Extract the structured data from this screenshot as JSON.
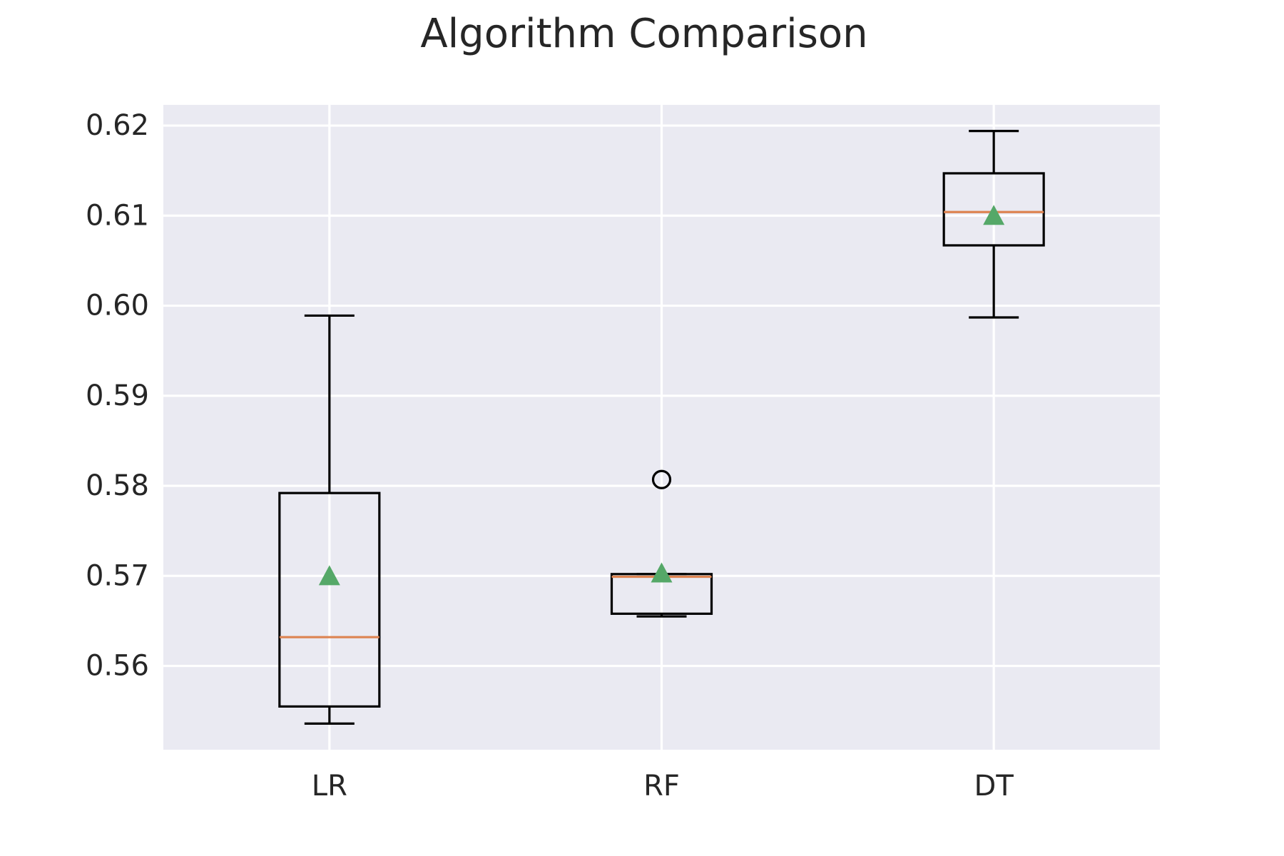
{
  "chart_data": {
    "type": "box",
    "title": "Algorithm Comparison",
    "xlabel": "",
    "ylabel": "",
    "categories": [
      "LR",
      "RF",
      "DT"
    ],
    "boxes": [
      {
        "category": "LR",
        "whisker_low": 0.5536,
        "q1": 0.5555,
        "median": 0.5632,
        "q3": 0.5792,
        "whisker_high": 0.5989,
        "mean": 0.57,
        "fliers": []
      },
      {
        "category": "RF",
        "whisker_low": 0.5655,
        "q1": 0.5658,
        "median": 0.5699,
        "q3": 0.5702,
        "whisker_high": 0.5702,
        "mean": 0.5703,
        "fliers": [
          0.5807
        ]
      },
      {
        "category": "DT",
        "whisker_low": 0.5987,
        "q1": 0.6067,
        "median": 0.6104,
        "q3": 0.6147,
        "whisker_high": 0.6194,
        "mean": 0.61,
        "fliers": []
      }
    ],
    "yticks": [
      0.56,
      0.57,
      0.58,
      0.59,
      0.6,
      0.61,
      0.62
    ],
    "ytick_labels": [
      "0.56",
      "0.57",
      "0.58",
      "0.59",
      "0.60",
      "0.61",
      "0.62"
    ],
    "ylim": [
      0.5507,
      0.6223
    ],
    "grid": true,
    "legend": "none",
    "colors": {
      "plot_background": "#eaeaf2",
      "grid": "#ffffff",
      "box": "#000000",
      "median": "#dd8452",
      "mean": "#55a868",
      "text": "#262626"
    }
  }
}
